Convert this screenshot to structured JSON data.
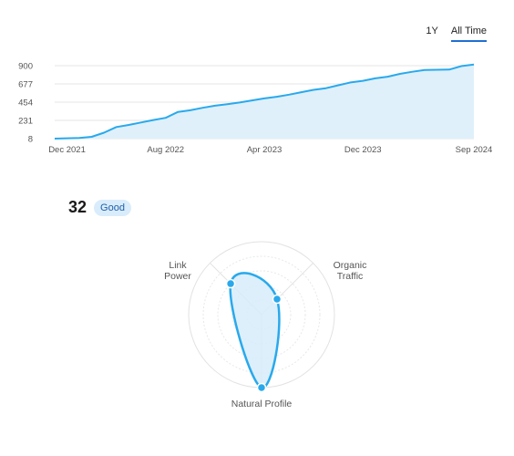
{
  "range_toggle": {
    "options": [
      "1Y",
      "All Time"
    ],
    "active": "All Time"
  },
  "chart_data": {
    "type": "area",
    "x": [
      "2021-11",
      "2021-12",
      "2022-01",
      "2022-02",
      "2022-03",
      "2022-04",
      "2022-05",
      "2022-06",
      "2022-07",
      "2022-08",
      "2022-09",
      "2022-10",
      "2022-11",
      "2022-12",
      "2023-01",
      "2023-02",
      "2023-03",
      "2023-04",
      "2023-05",
      "2023-06",
      "2023-07",
      "2023-08",
      "2023-09",
      "2023-10",
      "2023-11",
      "2023-12",
      "2024-01",
      "2024-02",
      "2024-03",
      "2024-04",
      "2024-05",
      "2024-06",
      "2024-07",
      "2024-08",
      "2024-09"
    ],
    "values": [
      8,
      12,
      17,
      30,
      80,
      150,
      175,
      205,
      235,
      262,
      335,
      355,
      385,
      410,
      430,
      450,
      475,
      500,
      520,
      545,
      575,
      605,
      625,
      660,
      695,
      715,
      745,
      765,
      800,
      825,
      848,
      850,
      852,
      895,
      915
    ],
    "xticks": [
      "Dec 2021",
      "Aug 2022",
      "Apr 2023",
      "Dec 2023",
      "Sep 2024"
    ],
    "yticks": [
      "900",
      "677",
      "454",
      "231",
      "8"
    ],
    "ylim": [
      8,
      900
    ],
    "grid": true,
    "color": "#29a9ec",
    "fill": "#dff0fb"
  },
  "score": {
    "value": "32",
    "badge": "Good"
  },
  "radar": {
    "axes": [
      "Link Power",
      "Organic Traffic",
      "Natural Profile"
    ],
    "levels": [
      0.6,
      0.3,
      1.0
    ],
    "color": "#29a9ec",
    "fill": "#d7ecfa"
  }
}
